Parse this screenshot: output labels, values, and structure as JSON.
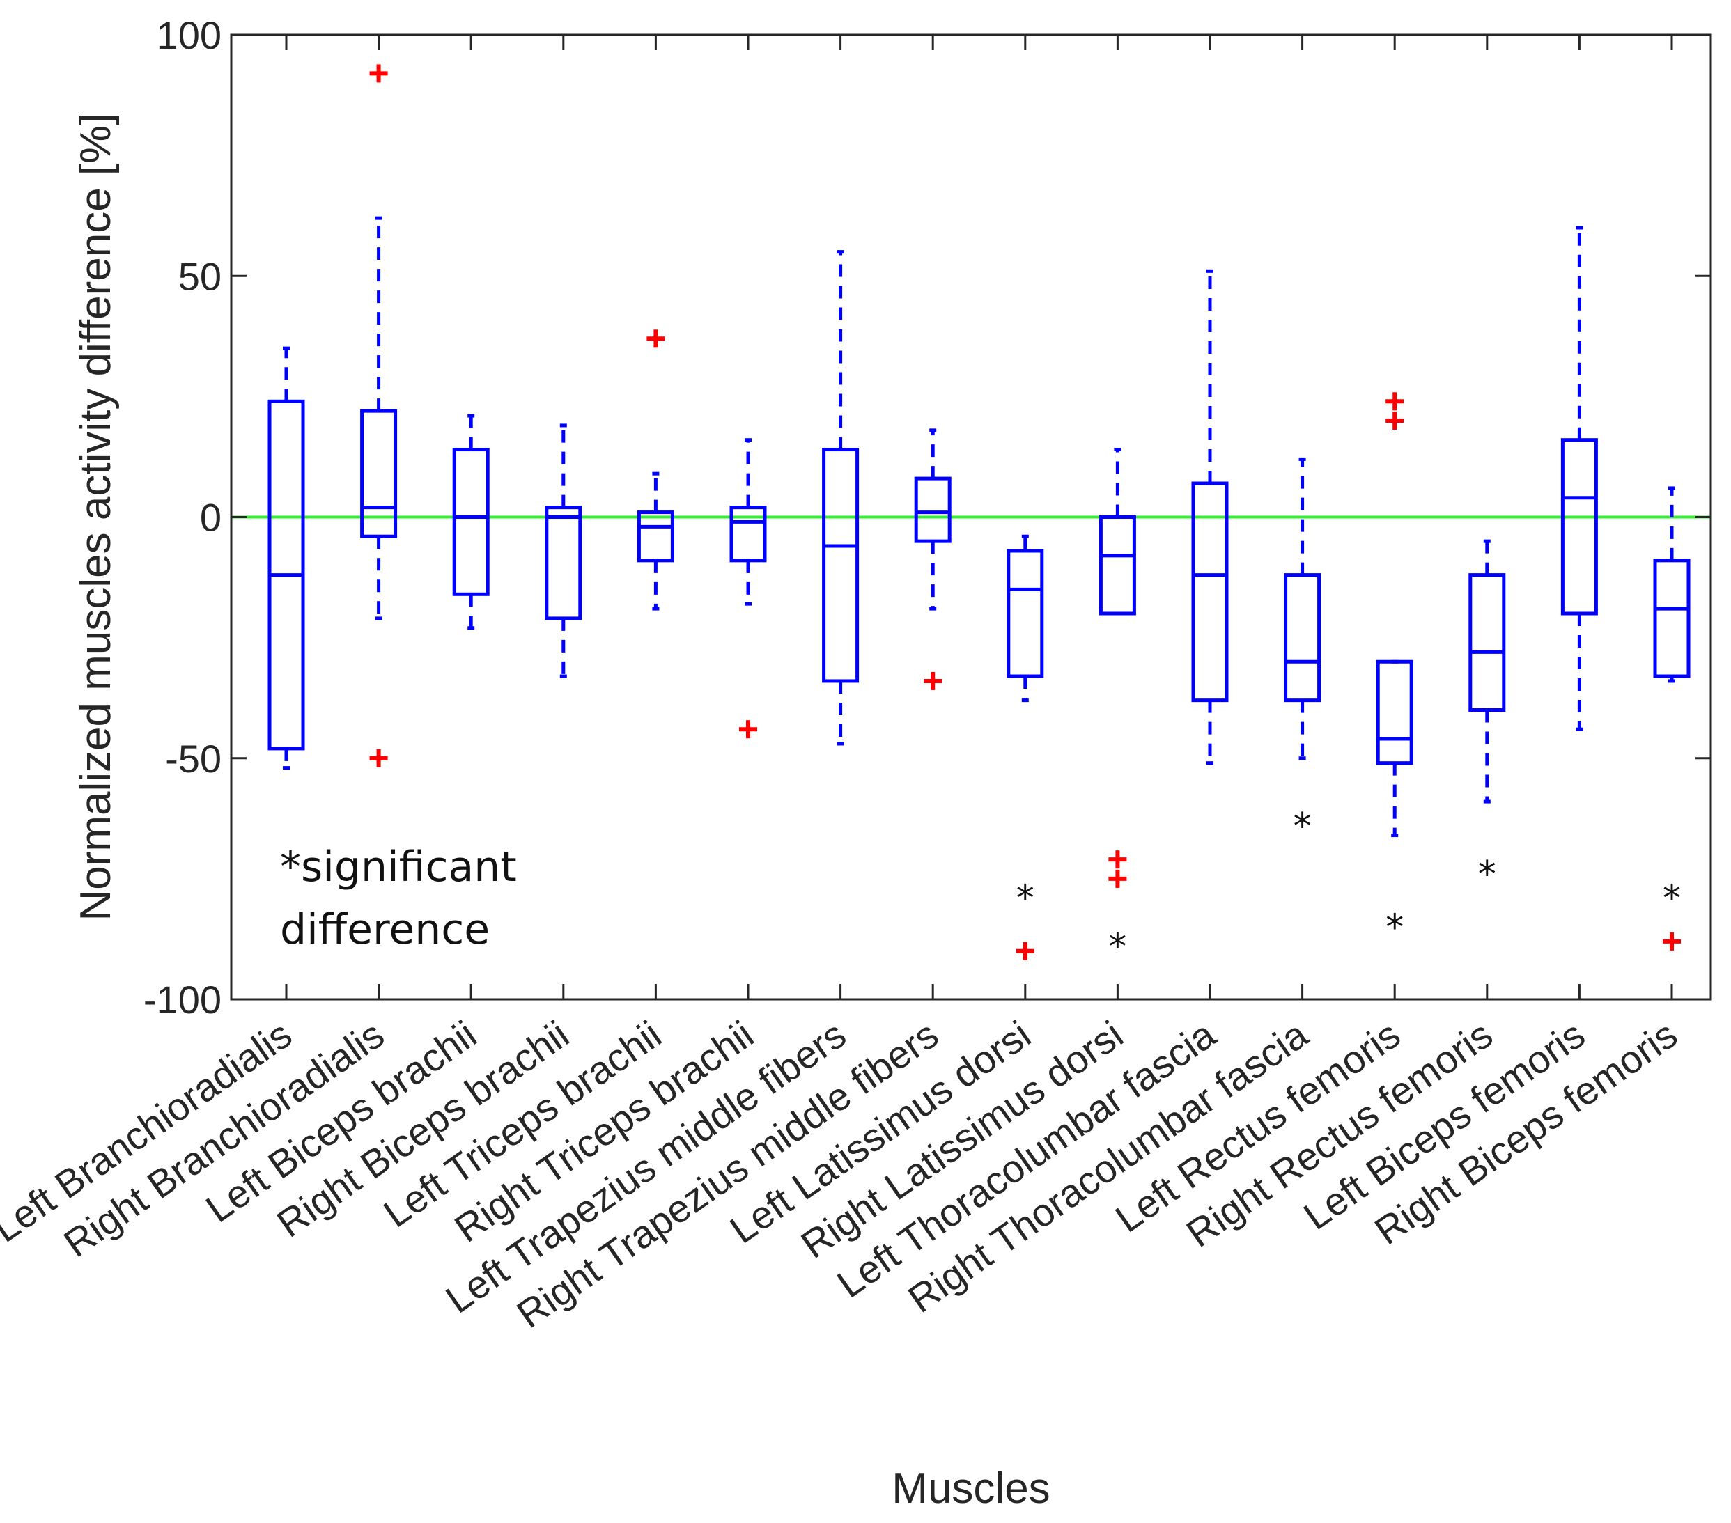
{
  "chart_data": {
    "type": "box",
    "title": "",
    "xlabel": "Muscles",
    "ylabel": "Normalized muscles activity difference [%]",
    "ylim": [
      -100,
      100
    ],
    "yticks": [
      -100,
      -50,
      0,
      50,
      100
    ],
    "ytick_labels": [
      "-100",
      "-50",
      "0",
      "50",
      "100"
    ],
    "reference_line": {
      "y": 0,
      "color": "#33ee33"
    },
    "colors": {
      "box": "#0000ff",
      "outlier": "#ff0000",
      "significance": "#111111"
    },
    "note": [
      "*significant",
      "difference"
    ],
    "categories": [
      "Left Branchioradialis",
      "Right Branchioradialis",
      "Left Biceps brachii",
      "Right Biceps brachii",
      "Left Triceps brachii",
      "Right Triceps brachii",
      "Left Trapezius middle fibers",
      "Right Trapezius middle fibers",
      "Left Latissimus dorsi",
      "Right Latissimus dorsi",
      "Left Thoracolumbar fascia",
      "Right Thoracolumbar fascia",
      "Left Rectus femoris",
      "Right Rectus femoris",
      "Left Biceps femoris",
      "Right Biceps femoris"
    ],
    "boxes": [
      {
        "whisker_low": -52,
        "q1": -48,
        "median": -12,
        "q3": 24,
        "whisker_high": 35,
        "outliers": [],
        "significant": false
      },
      {
        "whisker_low": -21,
        "q1": -4,
        "median": 2,
        "q3": 22,
        "whisker_high": 62,
        "outliers": [
          92,
          -50
        ],
        "significant": false
      },
      {
        "whisker_low": -23,
        "q1": -16,
        "median": 0,
        "q3": 14,
        "whisker_high": 21,
        "outliers": [],
        "significant": false
      },
      {
        "whisker_low": -33,
        "q1": -21,
        "median": 0,
        "q3": 2,
        "whisker_high": 19,
        "outliers": [],
        "significant": false
      },
      {
        "whisker_low": -19,
        "q1": -9,
        "median": -2,
        "q3": 1,
        "whisker_high": 9,
        "outliers": [
          37
        ],
        "significant": false
      },
      {
        "whisker_low": -18,
        "q1": -9,
        "median": -1,
        "q3": 2,
        "whisker_high": 16,
        "outliers": [
          -44
        ],
        "significant": false
      },
      {
        "whisker_low": -47,
        "q1": -34,
        "median": -6,
        "q3": 14,
        "whisker_high": 55,
        "outliers": [],
        "significant": false
      },
      {
        "whisker_low": -19,
        "q1": -5,
        "median": 1,
        "q3": 8,
        "whisker_high": 18,
        "outliers": [
          -34
        ],
        "significant": false
      },
      {
        "whisker_low": -38,
        "q1": -33,
        "median": -15,
        "q3": -7,
        "whisker_high": -4,
        "outliers": [
          -90
        ],
        "significant": true,
        "significance_y": -77
      },
      {
        "whisker_low": -20,
        "q1": -20,
        "median": -8,
        "q3": 0,
        "whisker_high": 14,
        "outliers": [
          -71,
          -75
        ],
        "significant": true,
        "significance_y": -87
      },
      {
        "whisker_low": -51,
        "q1": -38,
        "median": -12,
        "q3": 7,
        "whisker_high": 51,
        "outliers": [],
        "significant": false
      },
      {
        "whisker_low": -50,
        "q1": -38,
        "median": -30,
        "q3": -12,
        "whisker_high": 12,
        "outliers": [],
        "significant": true,
        "significance_y": -62
      },
      {
        "whisker_low": -66,
        "q1": -51,
        "median": -46,
        "q3": -30,
        "whisker_high": -30,
        "outliers": [
          24,
          20
        ],
        "significant": true,
        "significance_y": -83
      },
      {
        "whisker_low": -59,
        "q1": -40,
        "median": -28,
        "q3": -12,
        "whisker_high": -5,
        "outliers": [],
        "significant": true,
        "significance_y": -72
      },
      {
        "whisker_low": -44,
        "q1": -20,
        "median": 4,
        "q3": 16,
        "whisker_high": 60,
        "outliers": [],
        "significant": false
      },
      {
        "whisker_low": -34,
        "q1": -33,
        "median": -19,
        "q3": -9,
        "whisker_high": 6,
        "outliers": [
          -88
        ],
        "significant": true,
        "significance_y": -77
      }
    ]
  }
}
